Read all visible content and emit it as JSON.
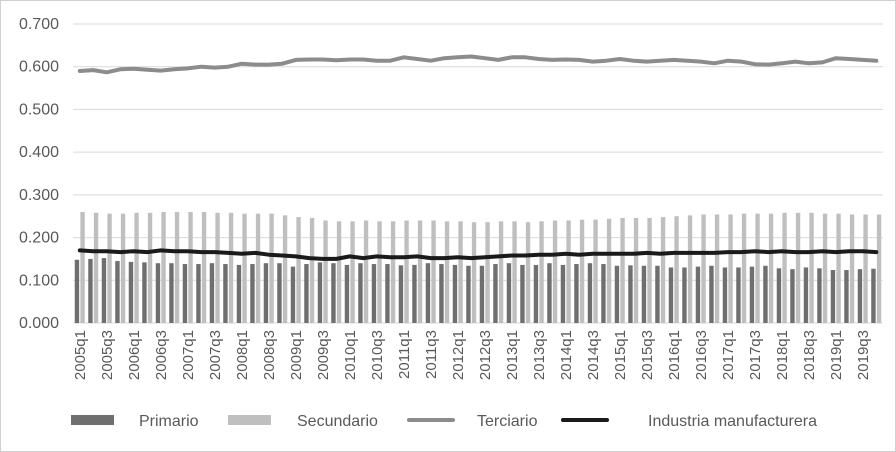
{
  "chart_data": {
    "type": "bar",
    "title": "",
    "xlabel": "",
    "ylabel": "",
    "ylim": [
      0,
      0.7
    ],
    "yticks": [
      "0.000",
      "0.100",
      "0.200",
      "0.300",
      "0.400",
      "0.500",
      "0.600",
      "0.700"
    ],
    "grid": true,
    "legend_position": "bottom",
    "colors": {
      "Primario": "#6f6f6f",
      "Secundario": "#bfbfbf",
      "Terciario": "#8c8c8c",
      "Industria manufacturera": "#1a1a1a",
      "grid": "#d9d9d9",
      "text": "#595959"
    },
    "categories": [
      "2005q1",
      "2005q2",
      "2005q3",
      "2005q4",
      "2006q1",
      "2006q2",
      "2006q3",
      "2006q4",
      "2007q1",
      "2007q2",
      "2007q3",
      "2007q4",
      "2008q1",
      "2008q2",
      "2008q3",
      "2008q4",
      "2009q1",
      "2009q2",
      "2009q3",
      "2009q4",
      "2010q1",
      "2010q2",
      "2010q3",
      "2010q4",
      "2011q1",
      "2011q2",
      "2011q3",
      "2011q4",
      "2012q1",
      "2012q2",
      "2012q3",
      "2012q4",
      "2013q1",
      "2013q2",
      "2013q3",
      "2013q4",
      "2014q1",
      "2014q2",
      "2014q3",
      "2014q4",
      "2015q1",
      "2015q2",
      "2015q3",
      "2015q4",
      "2016q1",
      "2016q2",
      "2016q3",
      "2016q4",
      "2017q1",
      "2017q2",
      "2017q3",
      "2017q4",
      "2018q1",
      "2018q2",
      "2018q3",
      "2018q4",
      "2019q1",
      "2019q2",
      "2019q3",
      "2019q4"
    ],
    "x_tick_labels": [
      "2005q1",
      "2005q3",
      "2006q1",
      "2006q3",
      "2007q1",
      "2007q3",
      "2008q1",
      "2008q3",
      "2009q1",
      "2009q3",
      "2010q1",
      "2010q3",
      "2011q1",
      "2011q3",
      "2012q1",
      "2012q3",
      "2013q1",
      "2013q3",
      "2014q1",
      "2014q3",
      "2015q1",
      "2015q3",
      "2016q1",
      "2016q3",
      "2017q1",
      "2017q3",
      "2018q1",
      "2018q3",
      "2019q1",
      "2019q3"
    ],
    "series": [
      {
        "name": "Primario",
        "kind": "bar",
        "values": [
          0.148,
          0.15,
          0.152,
          0.145,
          0.143,
          0.142,
          0.14,
          0.14,
          0.138,
          0.138,
          0.14,
          0.138,
          0.136,
          0.138,
          0.14,
          0.14,
          0.132,
          0.138,
          0.142,
          0.14,
          0.136,
          0.14,
          0.138,
          0.138,
          0.135,
          0.136,
          0.14,
          0.138,
          0.136,
          0.134,
          0.134,
          0.138,
          0.14,
          0.136,
          0.136,
          0.14,
          0.136,
          0.138,
          0.14,
          0.138,
          0.134,
          0.135,
          0.134,
          0.134,
          0.13,
          0.13,
          0.132,
          0.134,
          0.13,
          0.13,
          0.132,
          0.134,
          0.128,
          0.126,
          0.13,
          0.128,
          0.124,
          0.124,
          0.126,
          0.127
        ]
      },
      {
        "name": "Secundario",
        "kind": "bar",
        "values": [
          0.26,
          0.258,
          0.256,
          0.256,
          0.258,
          0.258,
          0.26,
          0.26,
          0.26,
          0.26,
          0.258,
          0.258,
          0.256,
          0.256,
          0.256,
          0.252,
          0.248,
          0.246,
          0.24,
          0.238,
          0.238,
          0.24,
          0.238,
          0.238,
          0.24,
          0.24,
          0.24,
          0.238,
          0.238,
          0.236,
          0.236,
          0.238,
          0.238,
          0.236,
          0.238,
          0.24,
          0.24,
          0.242,
          0.242,
          0.244,
          0.246,
          0.246,
          0.246,
          0.248,
          0.25,
          0.252,
          0.254,
          0.254,
          0.254,
          0.256,
          0.256,
          0.256,
          0.258,
          0.258,
          0.258,
          0.256,
          0.256,
          0.254,
          0.254,
          0.254
        ]
      },
      {
        "name": "Terciario",
        "kind": "line",
        "values": [
          0.59,
          0.592,
          0.587,
          0.594,
          0.595,
          0.593,
          0.591,
          0.594,
          0.596,
          0.6,
          0.598,
          0.6,
          0.607,
          0.605,
          0.605,
          0.607,
          0.616,
          0.617,
          0.617,
          0.615,
          0.617,
          0.617,
          0.614,
          0.614,
          0.622,
          0.618,
          0.614,
          0.62,
          0.622,
          0.624,
          0.62,
          0.616,
          0.622,
          0.622,
          0.618,
          0.616,
          0.617,
          0.616,
          0.612,
          0.614,
          0.618,
          0.614,
          0.612,
          0.614,
          0.616,
          0.614,
          0.612,
          0.608,
          0.614,
          0.612,
          0.606,
          0.605,
          0.608,
          0.612,
          0.608,
          0.61,
          0.62,
          0.618,
          0.616,
          0.614
        ]
      },
      {
        "name": "Industria manufacturera",
        "kind": "line",
        "values": [
          0.17,
          0.168,
          0.168,
          0.166,
          0.168,
          0.166,
          0.17,
          0.168,
          0.168,
          0.166,
          0.166,
          0.164,
          0.162,
          0.164,
          0.16,
          0.158,
          0.156,
          0.152,
          0.15,
          0.15,
          0.156,
          0.152,
          0.156,
          0.154,
          0.154,
          0.156,
          0.152,
          0.152,
          0.154,
          0.152,
          0.154,
          0.156,
          0.158,
          0.158,
          0.16,
          0.16,
          0.162,
          0.16,
          0.162,
          0.162,
          0.162,
          0.162,
          0.164,
          0.162,
          0.164,
          0.164,
          0.164,
          0.164,
          0.166,
          0.166,
          0.168,
          0.166,
          0.168,
          0.166,
          0.166,
          0.168,
          0.166,
          0.168,
          0.168,
          0.166
        ]
      }
    ]
  }
}
